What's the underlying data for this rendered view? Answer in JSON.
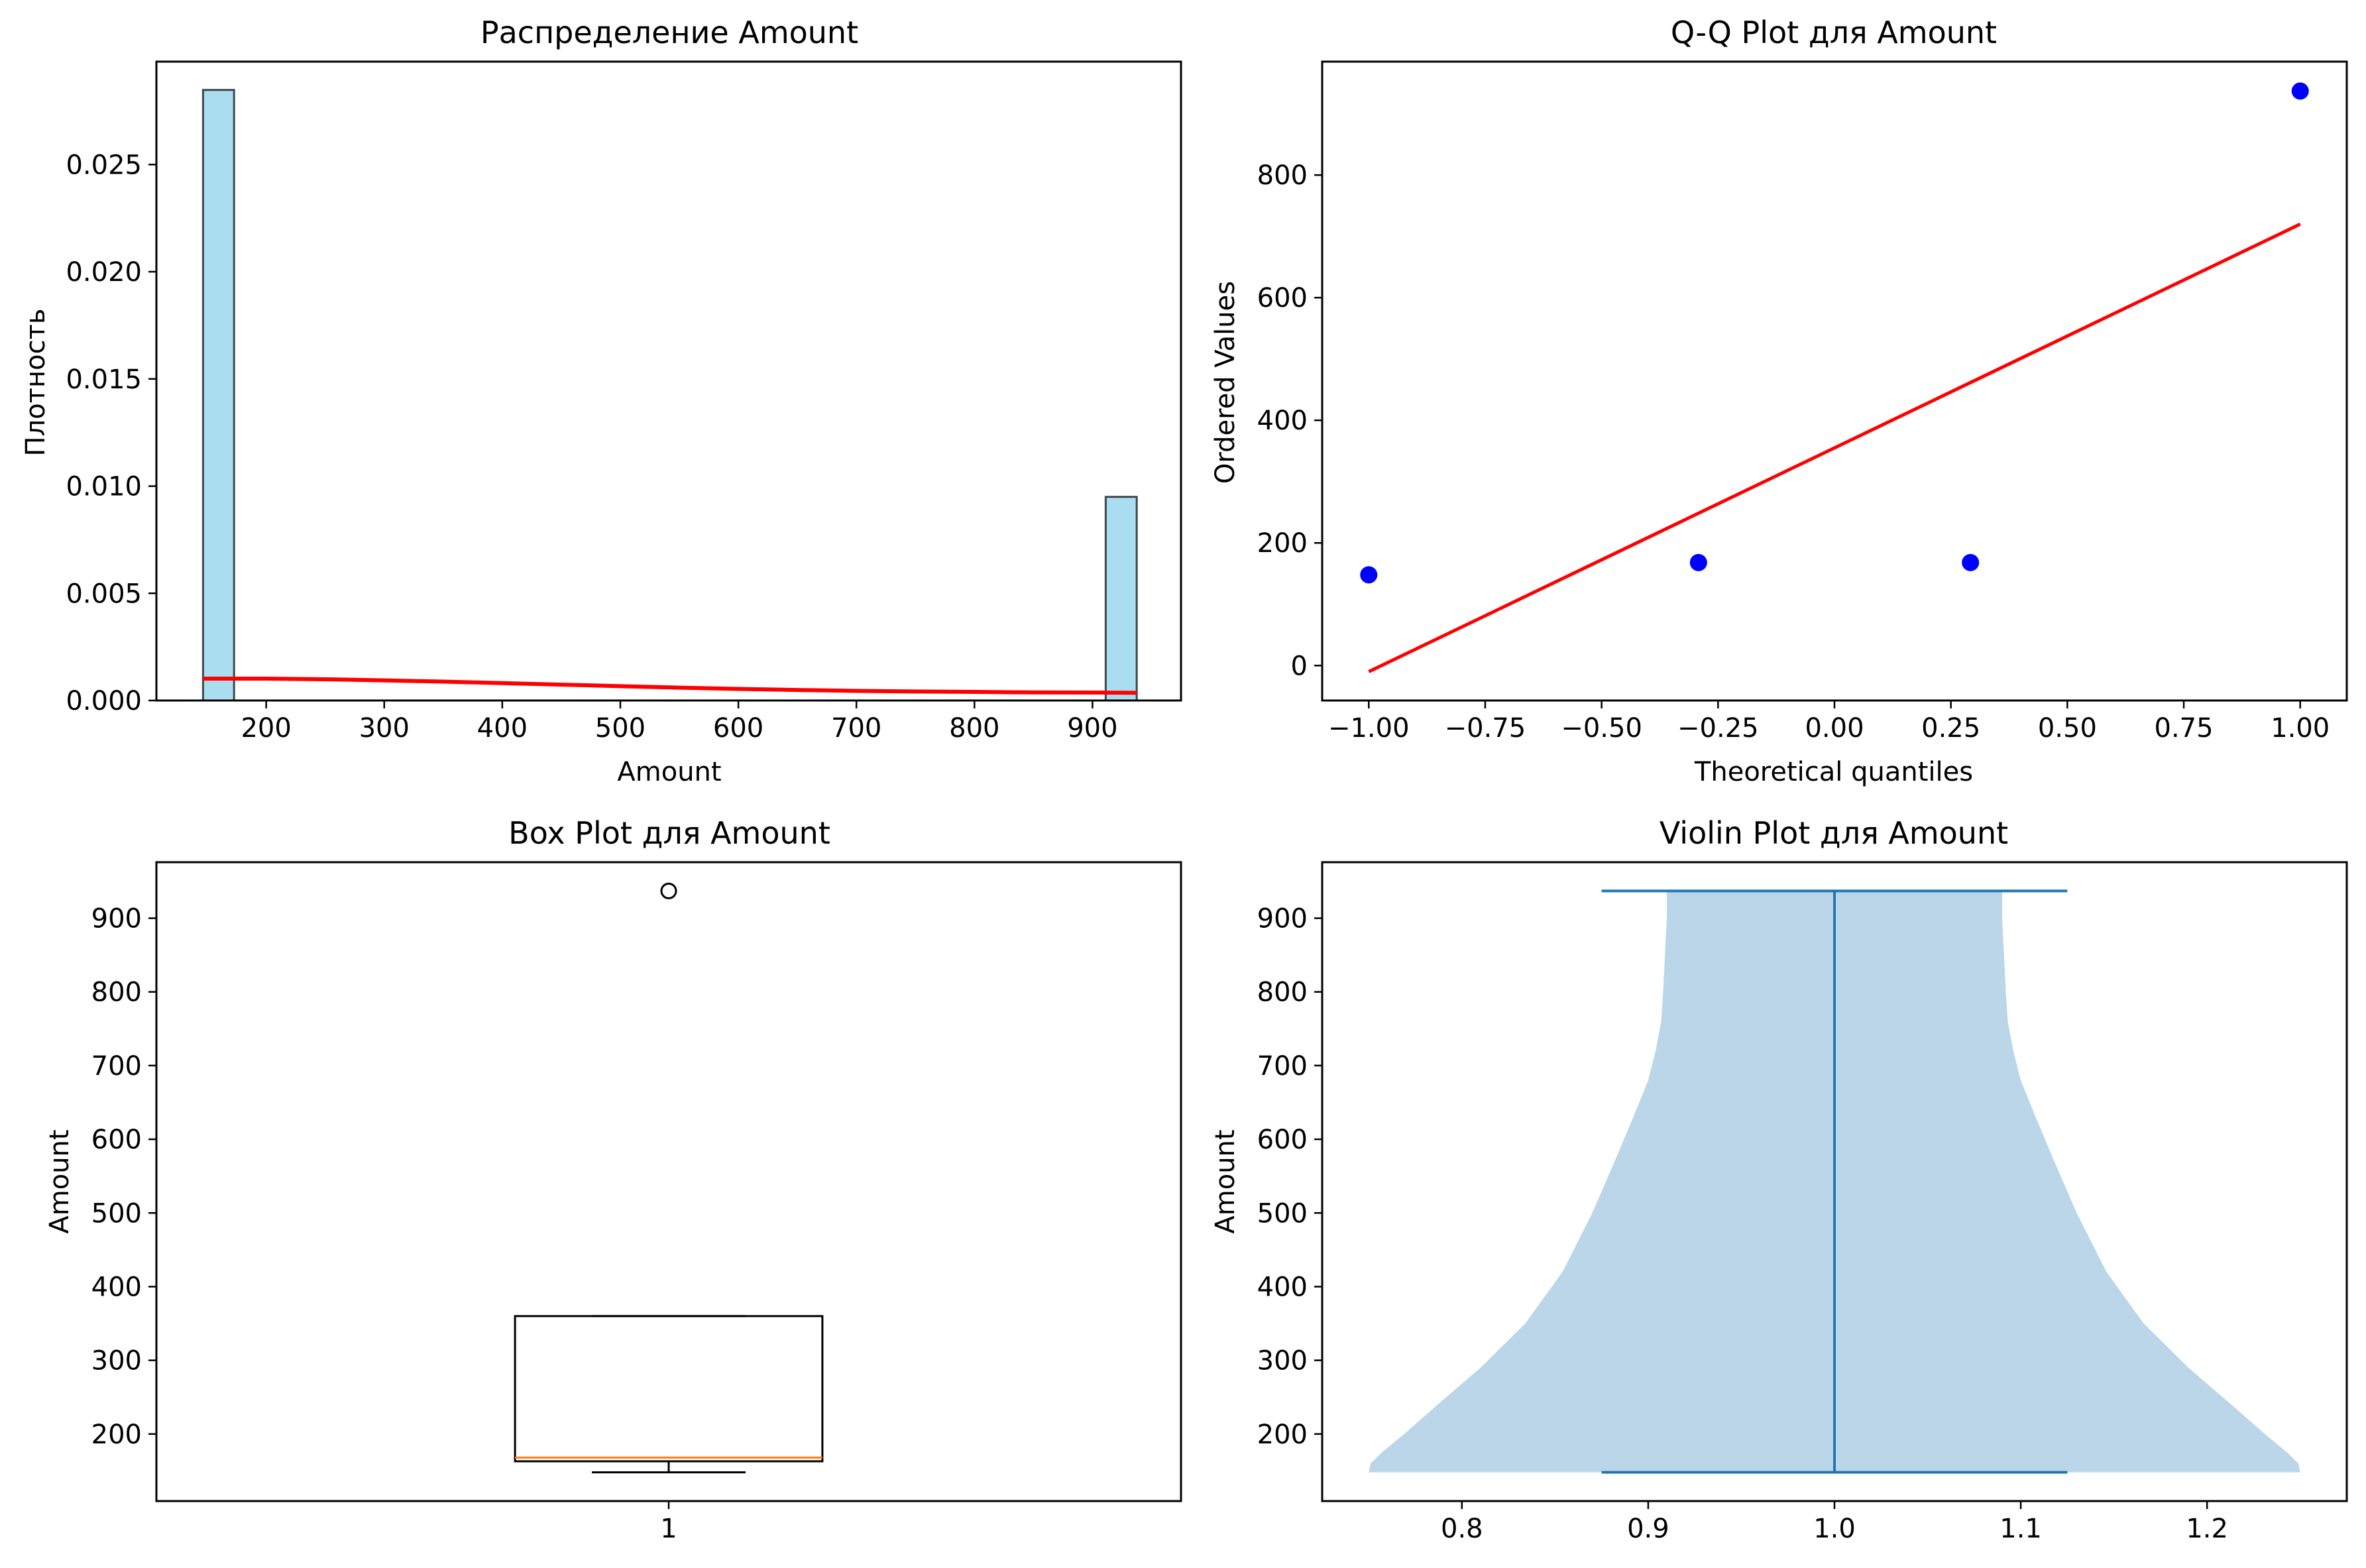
{
  "chart_data": [
    {
      "type": "bar",
      "subtype": "histogram",
      "title": "Распределение Amount",
      "xlabel": "Amount",
      "ylabel": "Плотность",
      "xlim": [
        107,
        975
      ],
      "ylim": [
        0,
        0.0298
      ],
      "xticks": [
        200,
        300,
        400,
        500,
        600,
        700,
        800,
        900
      ],
      "yticks": [
        0.0,
        0.005,
        0.01,
        0.015,
        0.02,
        0.025
      ],
      "ytick_labels": [
        "0.000",
        "0.005",
        "0.010",
        "0.015",
        "0.020",
        "0.025"
      ],
      "grid": false,
      "bins": [
        {
          "x0": 146.5,
          "x1": 172.8,
          "density": 0.02848
        },
        {
          "x0": 911.2,
          "x1": 937.5,
          "density": 0.0095
        }
      ],
      "bar_color": "#87ceeb",
      "kde_line": {
        "color": "#ff0000",
        "x": [
          146.5,
          200,
          250,
          300,
          350,
          400,
          450,
          500,
          550,
          600,
          650,
          700,
          750,
          800,
          850,
          900,
          937.5
        ],
        "y": [
          0.00102,
          0.00102,
          0.00099,
          0.00094,
          0.00088,
          0.00081,
          0.00074,
          0.00067,
          0.0006,
          0.00054,
          0.00049,
          0.00045,
          0.00042,
          0.0004,
          0.00038,
          0.00037,
          0.00036
        ]
      }
    },
    {
      "type": "scatter",
      "title": "Q-Q Plot для Amount",
      "xlabel": "Theoretical quantiles",
      "ylabel": "Ordered Values",
      "xlim": [
        -1.1,
        1.1
      ],
      "ylim": [
        -57,
        985
      ],
      "xticks": [
        -1.0,
        -0.75,
        -0.5,
        -0.25,
        0.0,
        0.25,
        0.5,
        0.75,
        1.0
      ],
      "xtick_labels": [
        "−1.00",
        "−0.75",
        "−0.50",
        "−0.25",
        "0.00",
        "0.25",
        "0.50",
        "0.75",
        "1.00"
      ],
      "yticks": [
        0,
        200,
        400,
        600,
        800
      ],
      "grid": false,
      "points": {
        "color": "#0000ff",
        "x": [
          -1.0,
          -0.292,
          0.292,
          1.0
        ],
        "y": [
          148,
          168,
          168,
          937
        ]
      },
      "fit_line": {
        "color": "#ff0000",
        "x": [
          -1.0,
          1.0
        ],
        "y": [
          -10,
          720
        ]
      }
    },
    {
      "type": "box",
      "title": "Box Plot для Amount",
      "xlabel": "",
      "ylabel": "Amount",
      "xlim": [
        0.5,
        1.5
      ],
      "ylim": [
        109,
        976
      ],
      "xticks": [
        1
      ],
      "yticks": [
        200,
        300,
        400,
        500,
        600,
        700,
        800,
        900
      ],
      "grid": false,
      "box": {
        "position": 1,
        "whisker_low": 148,
        "q1": 163,
        "median": 168,
        "q3": 360,
        "whisker_high": 360,
        "outliers": [
          937
        ]
      },
      "median_color": "#ff7f0e"
    },
    {
      "type": "violin",
      "title": "Violin Plot для Amount",
      "xlabel": "",
      "ylabel": "Amount",
      "xlim": [
        0.725,
        1.275
      ],
      "ylim": [
        109,
        976
      ],
      "xticks": [
        0.8,
        0.9,
        1.0,
        1.1,
        1.2
      ],
      "xtick_labels": [
        "0.8",
        "0.9",
        "1.0",
        "1.1",
        "1.2"
      ],
      "yticks": [
        200,
        300,
        400,
        500,
        600,
        700,
        800,
        900
      ],
      "grid": false,
      "position": 1.0,
      "min": 148,
      "max": 937,
      "line_color": "#1f77b4",
      "fill_color": "#1f77b4",
      "half_width_profile": {
        "y": [
          148,
          160,
          175,
          200,
          240,
          290,
          350,
          420,
          500,
          570,
          630,
          680,
          720,
          760,
          800,
          850,
          900,
          937
        ],
        "w": [
          0.25,
          0.249,
          0.243,
          0.231,
          0.213,
          0.19,
          0.166,
          0.146,
          0.13,
          0.118,
          0.108,
          0.1,
          0.096,
          0.093,
          0.092,
          0.091,
          0.09,
          0.09
        ]
      }
    }
  ]
}
